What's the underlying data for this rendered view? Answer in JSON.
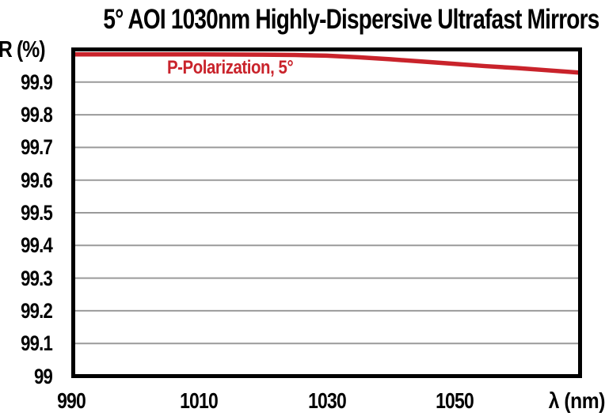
{
  "colors": {
    "line": "#C9232B",
    "grid": "#9A9A9A",
    "axis": "#000000",
    "text": "#000000",
    "background": "#FFFFFF"
  },
  "chart_data": {
    "type": "line",
    "title": "5° AOI 1030nm Highly-Dispersive Ultrafast Mirrors",
    "xlabel": "λ (nm)",
    "ylabel": "R (%)",
    "xlim": [
      990,
      1070
    ],
    "ylim": [
      99,
      100
    ],
    "grid": "horizontal gridlines at each y tick, gray",
    "x_ticks": [
      {
        "value": 990,
        "label": "990"
      },
      {
        "value": 1010,
        "label": "1010"
      },
      {
        "value": 1030,
        "label": "1030"
      },
      {
        "value": 1050,
        "label": "1050"
      }
    ],
    "y_ticks": [
      {
        "value": 99.9,
        "label": "99.9"
      },
      {
        "value": 99.8,
        "label": "99.8"
      },
      {
        "value": 99.7,
        "label": "99.7"
      },
      {
        "value": 99.6,
        "label": "99.6"
      },
      {
        "value": 99.5,
        "label": "99.5"
      },
      {
        "value": 99.4,
        "label": "99.4"
      },
      {
        "value": 99.3,
        "label": "99.3"
      },
      {
        "value": 99.2,
        "label": "99.2"
      },
      {
        "value": 99.1,
        "label": "99.1"
      },
      {
        "value": 99.0,
        "label": "99"
      }
    ],
    "legend": {
      "label": "P-Polarization, 5°",
      "position": "inside-top-left",
      "color": "#C9232B"
    },
    "series": [
      {
        "name": "P-Polarization, 5°",
        "color": "#C9232B",
        "x": [
          990,
          1000,
          1010,
          1020,
          1025,
          1030,
          1035,
          1040,
          1045,
          1050,
          1055,
          1060,
          1065,
          1070
        ],
        "y": [
          99.985,
          99.985,
          99.985,
          99.984,
          99.983,
          99.981,
          99.976,
          99.97,
          99.963,
          99.956,
          99.949,
          99.943,
          99.936,
          99.929
        ]
      }
    ]
  }
}
